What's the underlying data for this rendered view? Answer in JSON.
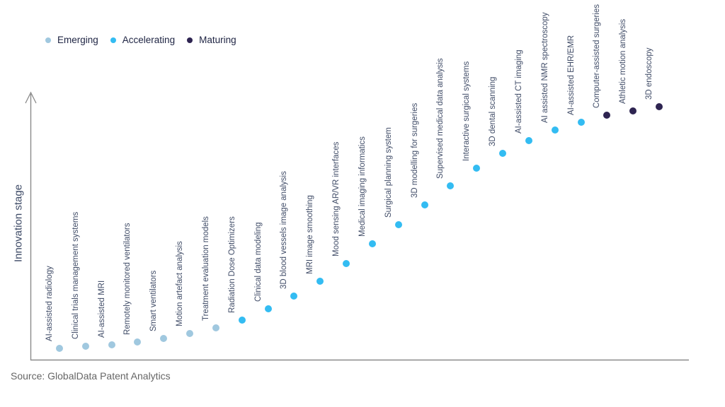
{
  "legend": {
    "items": [
      {
        "label": "Emerging",
        "color": "#a0c8df"
      },
      {
        "label": "Accelerating",
        "color": "#33bcf2"
      },
      {
        "label": "Maturing",
        "color": "#2e2451"
      }
    ]
  },
  "y_axis": {
    "label": "Innovation stage"
  },
  "source": {
    "text": "Source: GlobalData Patent Analytics"
  },
  "chart_data": {
    "type": "scatter",
    "title": "",
    "xlabel": "",
    "ylabel": "Innovation stage",
    "grid": false,
    "legend_position": "top-left",
    "y_scale_note": "level is relative innovation stage from 0 (axis bottom) to 1 (axis top); no numeric ticks shown",
    "ylim": [
      0,
      1
    ],
    "points": [
      {
        "label": "AI-assisted radiology",
        "stage": "Emerging",
        "level": 0.043
      },
      {
        "label": "Clinical trials management systems",
        "stage": "Emerging",
        "level": 0.051
      },
      {
        "label": "AI-assisted MRI",
        "stage": "Emerging",
        "level": 0.057
      },
      {
        "label": "Remotely monitored ventilators",
        "stage": "Emerging",
        "level": 0.068
      },
      {
        "label": "Smart ventilators",
        "stage": "Emerging",
        "level": 0.081
      },
      {
        "label": "Motion artefact analysis",
        "stage": "Emerging",
        "level": 0.1
      },
      {
        "label": "Treatment evaluation models",
        "stage": "Emerging",
        "level": 0.122
      },
      {
        "label": "Radiation Dose Optimizers",
        "stage": "Accelerating",
        "level": 0.152
      },
      {
        "label": "Clinical data modeling",
        "stage": "Accelerating",
        "level": 0.195
      },
      {
        "label": "3D blood vessels image analysis",
        "stage": "Accelerating",
        "level": 0.244
      },
      {
        "label": "MRI image smoothing",
        "stage": "Accelerating",
        "level": 0.301
      },
      {
        "label": "Mood sensing AR/VR interfaces",
        "stage": "Accelerating",
        "level": 0.369
      },
      {
        "label": "Medical imaging informatics",
        "stage": "Accelerating",
        "level": 0.444
      },
      {
        "label": "Surgical planning system",
        "stage": "Accelerating",
        "level": 0.518
      },
      {
        "label": "3D modelling for surgeries",
        "stage": "Accelerating",
        "level": 0.593
      },
      {
        "label": "Supervised medical data analysis",
        "stage": "Accelerating",
        "level": 0.667
      },
      {
        "label": "Interactive surgical systems",
        "stage": "Accelerating",
        "level": 0.734
      },
      {
        "label": "3D dental scanning",
        "stage": "Accelerating",
        "level": 0.791
      },
      {
        "label": "AI-assisted CT imaging",
        "stage": "Accelerating",
        "level": 0.84
      },
      {
        "label": "AI assisted NMR spectroscopy",
        "stage": "Accelerating",
        "level": 0.881
      },
      {
        "label": "AI-assisted EHR/EMR",
        "stage": "Accelerating",
        "level": 0.911
      },
      {
        "label": "Computer-assisted surgeries",
        "stage": "Maturing",
        "level": 0.938
      },
      {
        "label": "Athletic motion analysis",
        "stage": "Maturing",
        "level": 0.954
      },
      {
        "label": "3D endoscopy",
        "stage": "Maturing",
        "level": 0.97
      }
    ]
  }
}
